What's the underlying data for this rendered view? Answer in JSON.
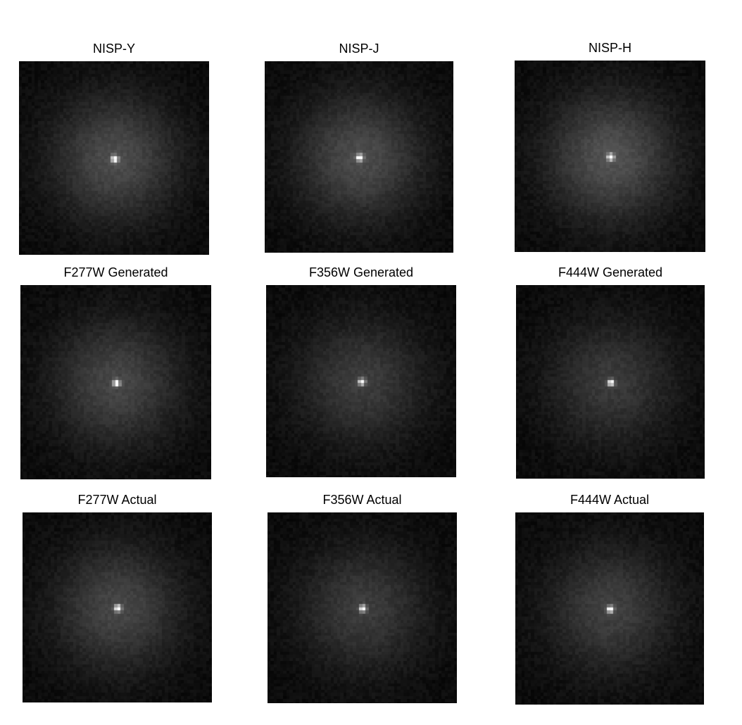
{
  "panels": [
    {
      "title": "NISP-Y",
      "halo_brightness": 0.55
    },
    {
      "title": "NISP-J",
      "halo_brightness": 0.55
    },
    {
      "title": "NISP-H",
      "halo_brightness": 0.6
    },
    {
      "title": "F277W Generated",
      "halo_brightness": 0.5
    },
    {
      "title": "F356W Generated",
      "halo_brightness": 0.42
    },
    {
      "title": "F444W Generated",
      "halo_brightness": 0.4
    },
    {
      "title": "F277W Actual",
      "halo_brightness": 0.5
    },
    {
      "title": "F356W Actual",
      "halo_brightness": 0.42
    },
    {
      "title": "F444W Actual",
      "halo_brightness": 0.45
    }
  ],
  "colors": {
    "background": "#ffffff",
    "image_background": "#060606",
    "title_text": "#000000"
  }
}
